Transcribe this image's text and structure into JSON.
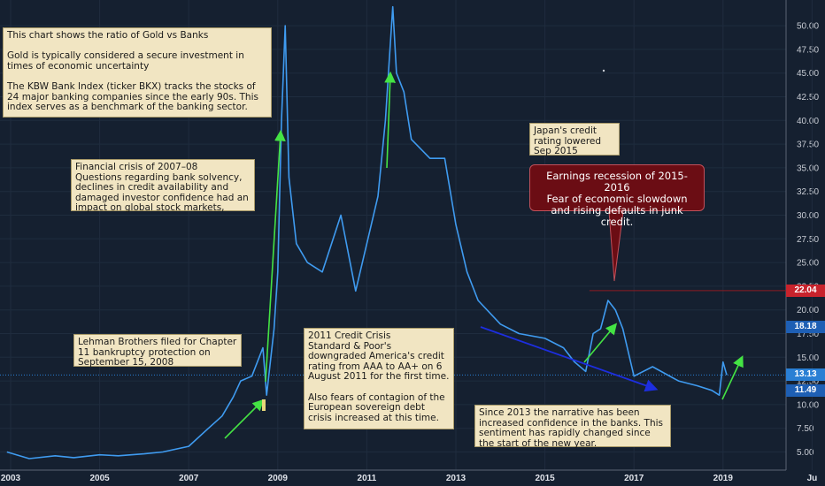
{
  "chart_data": {
    "type": "line",
    "series": [
      {
        "x": [
          "2002-12",
          "2003-06",
          "2004-01",
          "2004-06",
          "2005-01",
          "2005-06",
          "2006-01",
          "2006-06",
          "2007-01",
          "2007-06",
          "2007-10",
          "2008-01",
          "2008-03",
          "2008-06",
          "2008-09",
          "2008-10",
          "2008-12",
          "2009-01",
          "2009-02",
          "2009-03",
          "2009-04",
          "2009-06",
          "2009-09",
          "2010-01",
          "2010-06",
          "2010-10",
          "2011-01",
          "2011-04",
          "2011-06",
          "2011-07",
          "2011-08",
          "2011-09",
          "2011-11",
          "2012-01",
          "2012-06",
          "2012-10",
          "2013-01",
          "2013-04",
          "2013-07",
          "2014-01",
          "2014-06",
          "2015-01",
          "2015-06",
          "2015-09",
          "2015-12",
          "2016-02",
          "2016-04",
          "2016-06",
          "2016-08",
          "2016-10",
          "2017-01",
          "2017-06",
          "2018-01",
          "2018-06",
          "2018-10",
          "2018-12",
          "2019-01",
          "2019-02"
        ],
        "values": [
          5.0,
          4.3,
          4.6,
          4.4,
          4.7,
          4.6,
          4.8,
          5.0,
          5.6,
          7.4,
          8.8,
          10.8,
          12.5,
          13.0,
          16.0,
          11.0,
          18.0,
          24.0,
          40.0,
          50.0,
          34.0,
          27.0,
          25.0,
          24.0,
          30.0,
          22.0,
          27.0,
          32.0,
          40.0,
          46.0,
          52.0,
          45.0,
          43.0,
          38.0,
          36.0,
          36.0,
          29.0,
          24.0,
          21.0,
          18.5,
          17.5,
          17.0,
          16.0,
          14.5,
          13.5,
          17.5,
          18.0,
          21.0,
          20.0,
          18.0,
          13.0,
          14.0,
          12.5,
          12.0,
          11.5,
          11.0,
          14.5,
          13.13
        ]
      }
    ],
    "x_tick_labels": [
      "2003",
      "2005",
      "2007",
      "2009",
      "2011",
      "2013",
      "2015",
      "2017",
      "2019",
      "Ju"
    ],
    "y_tick_labels": [
      "5.00",
      "7.50",
      "10.00",
      "12.50",
      "15.00",
      "17.50",
      "20.00",
      "22.50",
      "25.00",
      "27.50",
      "30.00",
      "32.50",
      "35.00",
      "37.50",
      "40.00",
      "42.50",
      "45.00",
      "47.50",
      "50.00"
    ],
    "ylim": [
      3.5,
      52.5
    ],
    "price_tags": [
      {
        "label": "22.04",
        "value": 22.04,
        "color": "#c8232c"
      },
      {
        "label": "18.18",
        "value": 18.18,
        "color": "#1e5fb4"
      },
      {
        "label": "13.13",
        "value": 13.13,
        "color": "#2a7fd4"
      },
      {
        "label": "11.49",
        "value": 11.49,
        "color": "#1e5fb4"
      }
    ],
    "line_color": "#3f9bf0",
    "background_color": "#152030",
    "grid": true
  },
  "annotations": {
    "intro": "This chart shows the ratio of Gold vs Banks\n\nGold is typically considered a secure investment in times of economic uncertainty\n\nThe  KBW Bank Index (ticker BKX) tracks the stocks of 24 major banking companies since the early 90s.  This index serves as a benchmark of the banking sector.",
    "crisis": "Financial crisis of 2007–08\nQuestions regarding bank solvency, declines in credit availability and damaged investor confidence had an impact on global stock markets,",
    "lehman": " Lehman Brothers filed for Chapter 11 bankruptcy protection on September 15, 2008",
    "credit_crisis": "2011 Credit Crisis\nStandard & Poor's downgraded America's credit rating from AAA to AA+ on 6 August 2011 for the first time.\n\nAlso fears of contagion of the European sovereign debt crisis increased at this time.",
    "japan": "Japan's credit rating lowered\nSep 2015",
    "narrative": "Since 2013 the narrative has been increased confidence in the banks.  This sentiment has rapidly changed since the start of the new year.",
    "recession": "Earnings recession of 2015-2016\n Fear of economic slowdown and rising defaults in junk credit."
  }
}
